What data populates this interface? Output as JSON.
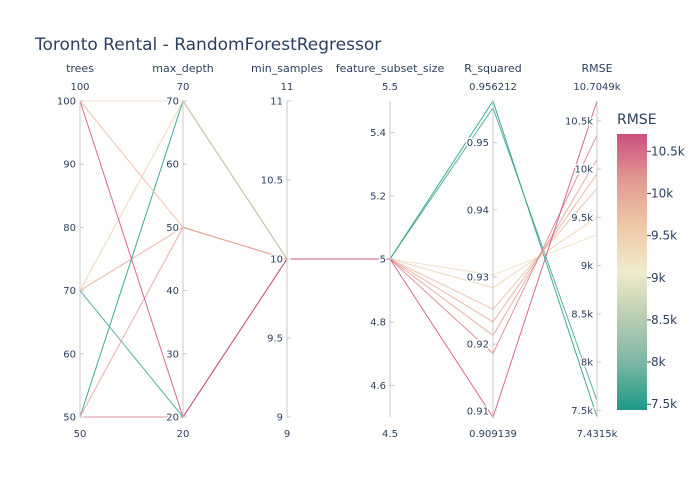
{
  "chart_data": {
    "type": "parallel_coordinates",
    "title": "Toronto Rental - RandomForestRegressor",
    "dimensions": [
      {
        "key": "trees",
        "label": "trees",
        "range": [
          50,
          100
        ],
        "range_labels": [
          "50",
          "100"
        ],
        "ticks": [
          {
            "v": 50,
            "t": "50"
          },
          {
            "v": 60,
            "t": "60"
          },
          {
            "v": 70,
            "t": "70"
          },
          {
            "v": 80,
            "t": "80"
          },
          {
            "v": 90,
            "t": "90"
          },
          {
            "v": 100,
            "t": "100"
          }
        ]
      },
      {
        "key": "max_depth",
        "label": "max_depth",
        "range": [
          20,
          70
        ],
        "range_labels": [
          "20",
          "70"
        ],
        "ticks": [
          {
            "v": 20,
            "t": "20"
          },
          {
            "v": 30,
            "t": "30"
          },
          {
            "v": 40,
            "t": "40"
          },
          {
            "v": 50,
            "t": "50"
          },
          {
            "v": 60,
            "t": "60"
          },
          {
            "v": 70,
            "t": "70"
          }
        ]
      },
      {
        "key": "min_samples",
        "label": "min_samples",
        "range": [
          9,
          11
        ],
        "range_labels": [
          "9",
          "11"
        ],
        "ticks": [
          {
            "v": 9,
            "t": "9"
          },
          {
            "v": 9.5,
            "t": "9.5"
          },
          {
            "v": 10,
            "t": "10"
          },
          {
            "v": 10.5,
            "t": "10.5"
          },
          {
            "v": 11,
            "t": "11"
          }
        ]
      },
      {
        "key": "feature_subset_size",
        "label": "feature_subset_size",
        "range": [
          4.5,
          5.5
        ],
        "range_labels": [
          "4.5",
          "5.5"
        ],
        "ticks": [
          {
            "v": 4.6,
            "t": "4.6"
          },
          {
            "v": 4.8,
            "t": "4.8"
          },
          {
            "v": 5,
            "t": "5"
          },
          {
            "v": 5.2,
            "t": "5.2"
          },
          {
            "v": 5.4,
            "t": "5.4"
          }
        ]
      },
      {
        "key": "R_squared",
        "label": "R_squared",
        "range": [
          0.909139,
          0.956212
        ],
        "range_labels": [
          "0.909139",
          "0.956212"
        ],
        "ticks": [
          {
            "v": 0.91,
            "t": "0.91"
          },
          {
            "v": 0.92,
            "t": "0.92"
          },
          {
            "v": 0.93,
            "t": "0.93"
          },
          {
            "v": 0.94,
            "t": "0.94"
          },
          {
            "v": 0.95,
            "t": "0.95"
          }
        ]
      },
      {
        "key": "RMSE",
        "label": "RMSE",
        "range": [
          7431.5,
          10704.9
        ],
        "range_labels": [
          "7.4315k",
          "10.7049k"
        ],
        "ticks": [
          {
            "v": 7500,
            "t": "7.5k"
          },
          {
            "v": 8000,
            "t": "8k"
          },
          {
            "v": 8500,
            "t": "8.5k"
          },
          {
            "v": 9000,
            "t": "9k"
          },
          {
            "v": 9500,
            "t": "9.5k"
          },
          {
            "v": 10000,
            "t": "10k"
          },
          {
            "v": 10500,
            "t": "10.5k"
          }
        ]
      }
    ],
    "rows": [
      {
        "trees": 100,
        "max_depth": 70,
        "min_samples": 10,
        "feature_subset_size": 5,
        "R_squared": 0.9303,
        "RMSE": 9320
      },
      {
        "trees": 50,
        "max_depth": 70,
        "min_samples": 10,
        "feature_subset_size": 5,
        "R_squared": 0.9562,
        "RMSE": 7431.5
      },
      {
        "trees": 70,
        "max_depth": 20,
        "min_samples": 10,
        "feature_subset_size": 5,
        "R_squared": 0.9552,
        "RMSE": 7600
      },
      {
        "trees": 70,
        "max_depth": 70,
        "min_samples": 10,
        "feature_subset_size": 5,
        "R_squared": 0.9284,
        "RMSE": 9500
      },
      {
        "trees": 100,
        "max_depth": 50,
        "min_samples": 10,
        "feature_subset_size": 5,
        "R_squared": 0.9252,
        "RMSE": 9800
      },
      {
        "trees": 70,
        "max_depth": 50,
        "min_samples": 10,
        "feature_subset_size": 5,
        "R_squared": 0.9233,
        "RMSE": 9950
      },
      {
        "trees": 50,
        "max_depth": 50,
        "min_samples": 10,
        "feature_subset_size": 5,
        "R_squared": 0.9213,
        "RMSE": 10100
      },
      {
        "trees": 50,
        "max_depth": 20,
        "min_samples": 10,
        "feature_subset_size": 5,
        "R_squared": 0.9186,
        "RMSE": 10350
      },
      {
        "trees": 100,
        "max_depth": 20,
        "min_samples": 10,
        "feature_subset_size": 5,
        "R_squared": 0.9091,
        "RMSE": 10704.9
      }
    ],
    "colorscale": {
      "title": "RMSE",
      "stops": [
        "#1c9986",
        "#7ab5a4",
        "#b8cdb1",
        "#f0ebcc",
        "#efc8a6",
        "#e19b93",
        "#cc4e7d"
      ],
      "range": [
        7431.5,
        10704.9
      ],
      "ticks": [
        {
          "v": 7500,
          "t": "7.5k"
        },
        {
          "v": 8000,
          "t": "8k"
        },
        {
          "v": 8500,
          "t": "8.5k"
        },
        {
          "v": 9000,
          "t": "9k"
        },
        {
          "v": 9500,
          "t": "9.5k"
        },
        {
          "v": 10000,
          "t": "10k"
        },
        {
          "v": 10500,
          "t": "10.5k"
        }
      ]
    }
  }
}
